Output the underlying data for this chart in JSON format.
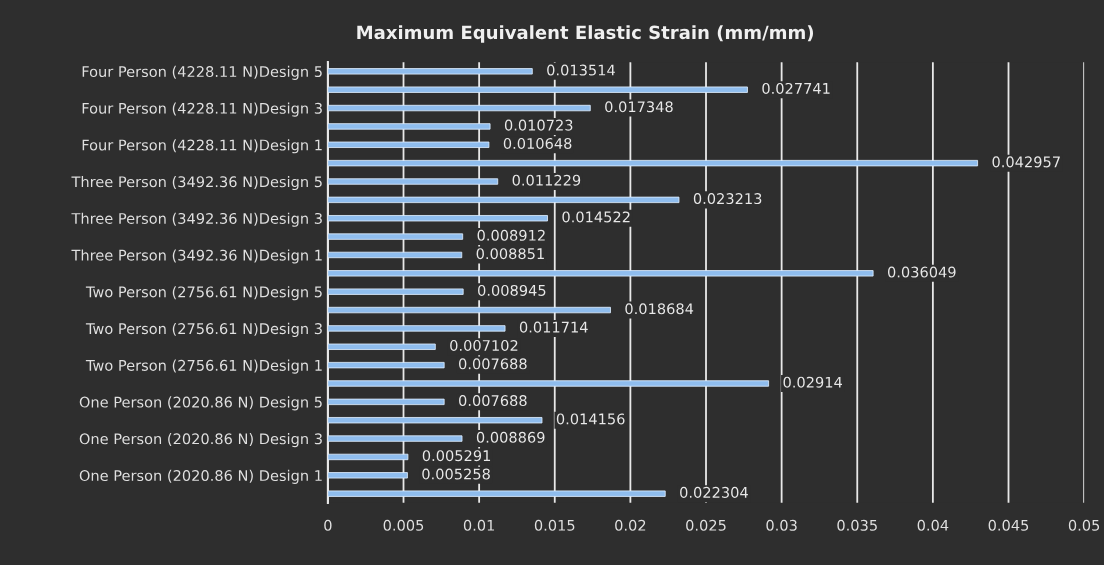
{
  "chart_data": {
    "type": "bar",
    "orientation": "horizontal",
    "title": "Maximum Equivalent Elastic Strain (mm/mm)",
    "categories": [
      "Four Person (4228.11 N)Design 5",
      null,
      "Four Person (4228.11 N)Design 3",
      null,
      "Four Person (4228.11 N)Design 1",
      null,
      "Three Person (3492.36 N)Design 5",
      null,
      "Three Person (3492.36 N)Design 3",
      null,
      "Three Person (3492.36 N)Design 1",
      null,
      "Two Person (2756.61 N)Design 5",
      null,
      "Two Person (2756.61 N)Design 3",
      null,
      "Two Person (2756.61 N)Design 1",
      null,
      "One Person (2020.86 N) Design 5",
      null,
      "One Person (2020.86 N) Design 3",
      null,
      "One Person (2020.86 N) Design 1",
      null
    ],
    "values": [
      0.013514,
      0.027741,
      0.017348,
      0.010723,
      0.010648,
      0.042957,
      0.011229,
      0.023213,
      0.014522,
      0.008912,
      0.008851,
      0.036049,
      0.008945,
      0.018684,
      0.011714,
      0.007102,
      0.007688,
      0.02914,
      0.007688,
      0.014156,
      0.008869,
      0.005291,
      0.005258,
      0.022304
    ],
    "color": "#8fbdee",
    "xlim": [
      0,
      0.05
    ],
    "xticks": [
      0,
      0.005,
      0.01,
      0.015,
      0.02,
      0.025,
      0.03,
      0.035,
      0.04,
      0.045,
      0.05
    ],
    "grid": "x",
    "data_labels": true,
    "legend": false
  }
}
